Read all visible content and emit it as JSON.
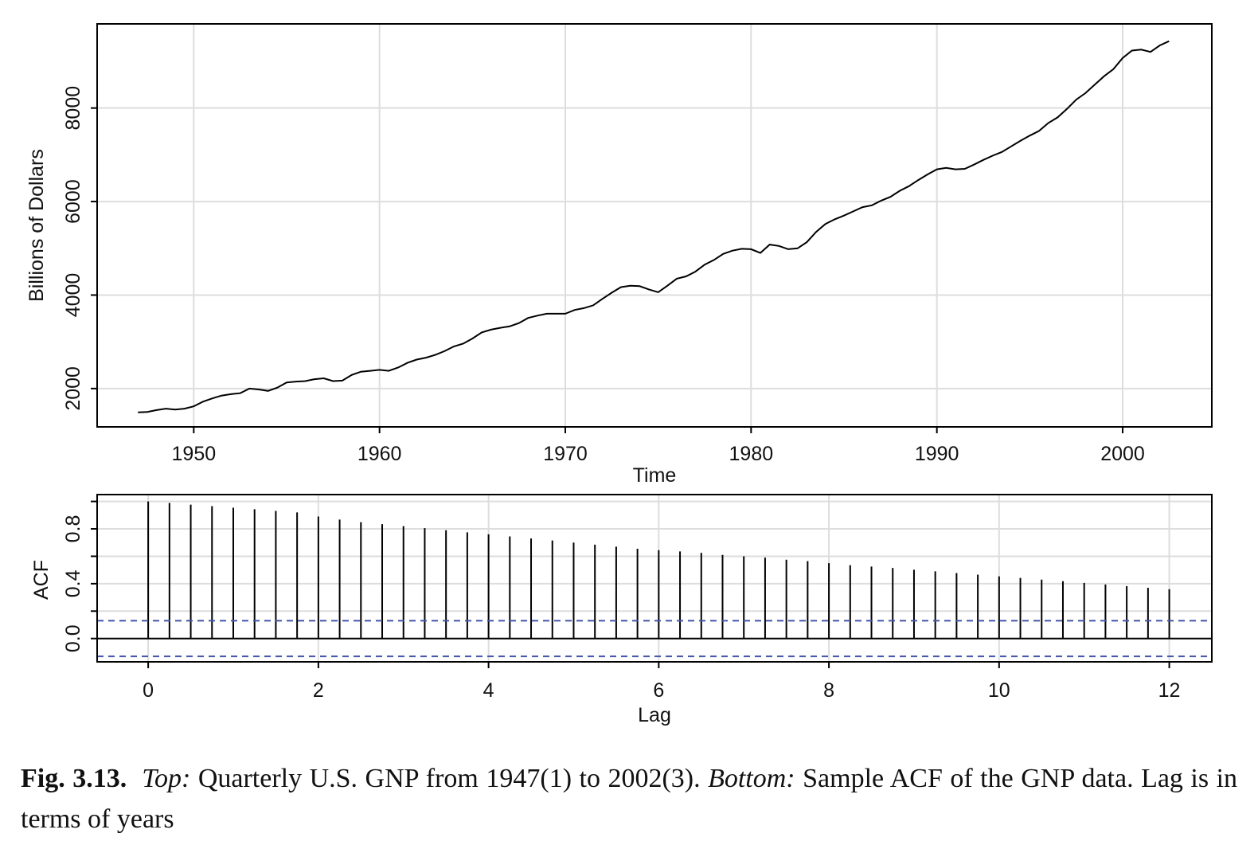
{
  "caption": {
    "label": "Fig. 3.13.",
    "part1_label": "Top:",
    "part1_text": "Quarterly U.S. GNP from 1947(1) to 2002(3).",
    "part2_label": "Bottom:",
    "part2_text": "Sample ACF of the GNP data. Lag is in terms of years"
  },
  "chart_data": [
    {
      "type": "line",
      "xlabel": "Time",
      "ylabel": "Billions of Dollars",
      "xlim": [
        1944.8,
        2004.8
      ],
      "ylim": [
        1180,
        9800
      ],
      "xticks": [
        1950,
        1960,
        1970,
        1980,
        1990,
        2000
      ],
      "yticks": [
        2000,
        4000,
        6000,
        8000
      ],
      "grid": true,
      "colors": {
        "line": "#000000",
        "grid": "#dddddd"
      },
      "series": [
        {
          "x": [
            1947.0,
            1947.5,
            1948.0,
            1948.5,
            1949.0,
            1949.5,
            1950.0,
            1950.5,
            1951.0,
            1951.5,
            1952.0,
            1952.5,
            1953.0,
            1953.5,
            1954.0,
            1954.5,
            1955.0,
            1955.5,
            1956.0,
            1956.5,
            1957.0,
            1957.5,
            1958.0,
            1958.5,
            1959.0,
            1959.5,
            1960.0,
            1960.5,
            1961.0,
            1961.5,
            1962.0,
            1962.5,
            1963.0,
            1963.5,
            1964.0,
            1964.5,
            1965.0,
            1965.5,
            1966.0,
            1966.5,
            1967.0,
            1967.5,
            1968.0,
            1968.5,
            1969.0,
            1969.5,
            1970.0,
            1970.5,
            1971.0,
            1971.5,
            1972.0,
            1972.5,
            1973.0,
            1973.5,
            1974.0,
            1974.5,
            1975.0,
            1975.5,
            1976.0,
            1976.5,
            1977.0,
            1977.5,
            1978.0,
            1978.5,
            1979.0,
            1979.5,
            1980.0,
            1980.5,
            1981.0,
            1981.5,
            1982.0,
            1982.5,
            1983.0,
            1983.5,
            1984.0,
            1984.5,
            1985.0,
            1985.5,
            1986.0,
            1986.5,
            1987.0,
            1987.5,
            1988.0,
            1988.5,
            1989.0,
            1989.5,
            1990.0,
            1990.5,
            1991.0,
            1991.5,
            1992.0,
            1992.5,
            1993.0,
            1993.5,
            1994.0,
            1994.5,
            1995.0,
            1995.5,
            1996.0,
            1996.5,
            1997.0,
            1997.5,
            1998.0,
            1998.5,
            1999.0,
            1999.5,
            2000.0,
            2000.5,
            2001.0,
            2001.5,
            2002.0,
            2002.5
          ],
          "values": [
            1490,
            1500,
            1540,
            1570,
            1550,
            1570,
            1620,
            1720,
            1790,
            1850,
            1880,
            1900,
            2000,
            1980,
            1950,
            2020,
            2130,
            2150,
            2160,
            2200,
            2220,
            2160,
            2170,
            2290,
            2360,
            2380,
            2400,
            2380,
            2450,
            2550,
            2620,
            2660,
            2720,
            2800,
            2900,
            2960,
            3070,
            3200,
            3260,
            3300,
            3330,
            3400,
            3510,
            3560,
            3600,
            3600,
            3600,
            3680,
            3720,
            3780,
            3920,
            4050,
            4170,
            4200,
            4190,
            4120,
            4060,
            4200,
            4350,
            4400,
            4500,
            4650,
            4750,
            4880,
            4950,
            4990,
            4980,
            4900,
            5080,
            5050,
            4980,
            5000,
            5130,
            5350,
            5520,
            5620,
            5700,
            5790,
            5880,
            5920,
            6020,
            6100,
            6230,
            6330,
            6460,
            6580,
            6690,
            6720,
            6690,
            6700,
            6790,
            6890,
            6980,
            7060,
            7180,
            7300,
            7410,
            7510,
            7680,
            7800,
            7980,
            8180,
            8320,
            8500,
            8680,
            8830,
            9070,
            9230,
            9250,
            9200,
            9340,
            9430
          ]
        }
      ]
    },
    {
      "type": "bar",
      "xlabel": "Lag",
      "ylabel": "ACF",
      "xlim": [
        -0.6,
        12.5
      ],
      "ylim": [
        -0.17,
        1.05
      ],
      "xticks": [
        0,
        2,
        4,
        6,
        8,
        10,
        12
      ],
      "yticks": [
        0.0,
        0.4,
        0.8
      ],
      "ytick_labels": [
        "0.0",
        "0.4",
        "0.8"
      ],
      "minor_yticks": [
        0.2,
        0.6,
        1.0
      ],
      "grid": true,
      "confidence_bound": 0.13,
      "colors": {
        "bars": "#000000",
        "bound": "#4455aa",
        "grid": "#dddddd"
      },
      "series": [
        {
          "x": [
            0,
            0.25,
            0.5,
            0.75,
            1.0,
            1.25,
            1.5,
            1.75,
            2.0,
            2.25,
            2.5,
            2.75,
            3.0,
            3.25,
            3.5,
            3.75,
            4.0,
            4.25,
            4.5,
            4.75,
            5.0,
            5.25,
            5.5,
            5.75,
            6.0,
            6.25,
            6.5,
            6.75,
            7.0,
            7.25,
            7.5,
            7.75,
            8.0,
            8.25,
            8.5,
            8.75,
            9.0,
            9.25,
            9.5,
            9.75,
            10.0,
            10.25,
            10.5,
            10.75,
            11.0,
            11.25,
            11.5,
            11.75,
            12.0
          ],
          "values": [
            1.0,
            0.989,
            0.977,
            0.966,
            0.954,
            0.943,
            0.931,
            0.92,
            0.89,
            0.868,
            0.849,
            0.834,
            0.82,
            0.805,
            0.79,
            0.775,
            0.76,
            0.745,
            0.73,
            0.715,
            0.7,
            0.685,
            0.67,
            0.655,
            0.645,
            0.635,
            0.625,
            0.61,
            0.6,
            0.59,
            0.575,
            0.565,
            0.55,
            0.535,
            0.525,
            0.515,
            0.502,
            0.49,
            0.478,
            0.466,
            0.454,
            0.442,
            0.43,
            0.418,
            0.406,
            0.394,
            0.382,
            0.37,
            0.36
          ]
        }
      ]
    }
  ]
}
